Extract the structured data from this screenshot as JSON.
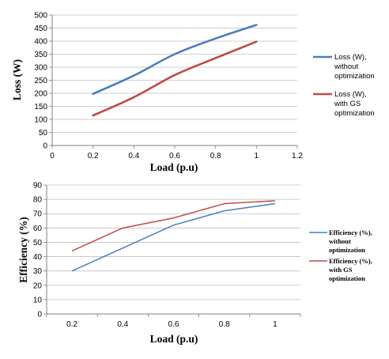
{
  "chart_data": [
    {
      "type": "line",
      "xlabel": "Load (p.u)",
      "ylabel": "Loss (W)",
      "xlim": [
        0,
        1.2
      ],
      "ylim": [
        0,
        500
      ],
      "x_ticks": [
        "0",
        "0.2",
        "0.4",
        "0.6",
        "0.8",
        "1",
        "1.2"
      ],
      "y_ticks": [
        "0",
        "50",
        "100",
        "150",
        "200",
        "250",
        "300",
        "350",
        "400",
        "450",
        "500"
      ],
      "grid": "horizontal",
      "legend_position": "right",
      "series": [
        {
          "name": "Loss (W), without optimization",
          "legend_lines": [
            "Loss (W),",
            "without",
            "optimization"
          ],
          "color": "#4a7ebb",
          "x": [
            0.2,
            0.4,
            0.6,
            0.8,
            1.0
          ],
          "values": [
            198,
            268,
            350,
            410,
            462
          ]
        },
        {
          "name": "Loss (W), with GS optimization",
          "legend_lines": [
            "Loss (W),",
            "with GS",
            "optimization"
          ],
          "color": "#be4b48",
          "x": [
            0.2,
            0.4,
            0.6,
            0.8,
            1.0
          ],
          "values": [
            115,
            185,
            270,
            335,
            398
          ]
        }
      ]
    },
    {
      "type": "line",
      "xlabel": "Load (p.u)",
      "ylabel": "Efficiency (%)",
      "categories": [
        "0.2",
        "0.4",
        "0.6",
        "0.8",
        "1"
      ],
      "ylim": [
        0,
        90
      ],
      "y_ticks": [
        "0",
        "10",
        "20",
        "30",
        "40",
        "50",
        "60",
        "70",
        "80",
        "90"
      ],
      "grid": "horizontal",
      "legend_position": "right",
      "series": [
        {
          "name": "Efficiency (%), without optimization",
          "legend_lines": [
            "Efficiency (%),",
            "without",
            "optimization"
          ],
          "color": "#4a7ebb",
          "values": [
            30,
            46,
            62,
            72,
            77
          ]
        },
        {
          "name": "Efficiency (%), with GS optimization",
          "legend_lines": [
            "Efficiency (%),",
            "with GS",
            "optimization"
          ],
          "color": "#be4b48",
          "values": [
            44,
            60,
            67,
            77,
            79
          ]
        }
      ]
    }
  ]
}
